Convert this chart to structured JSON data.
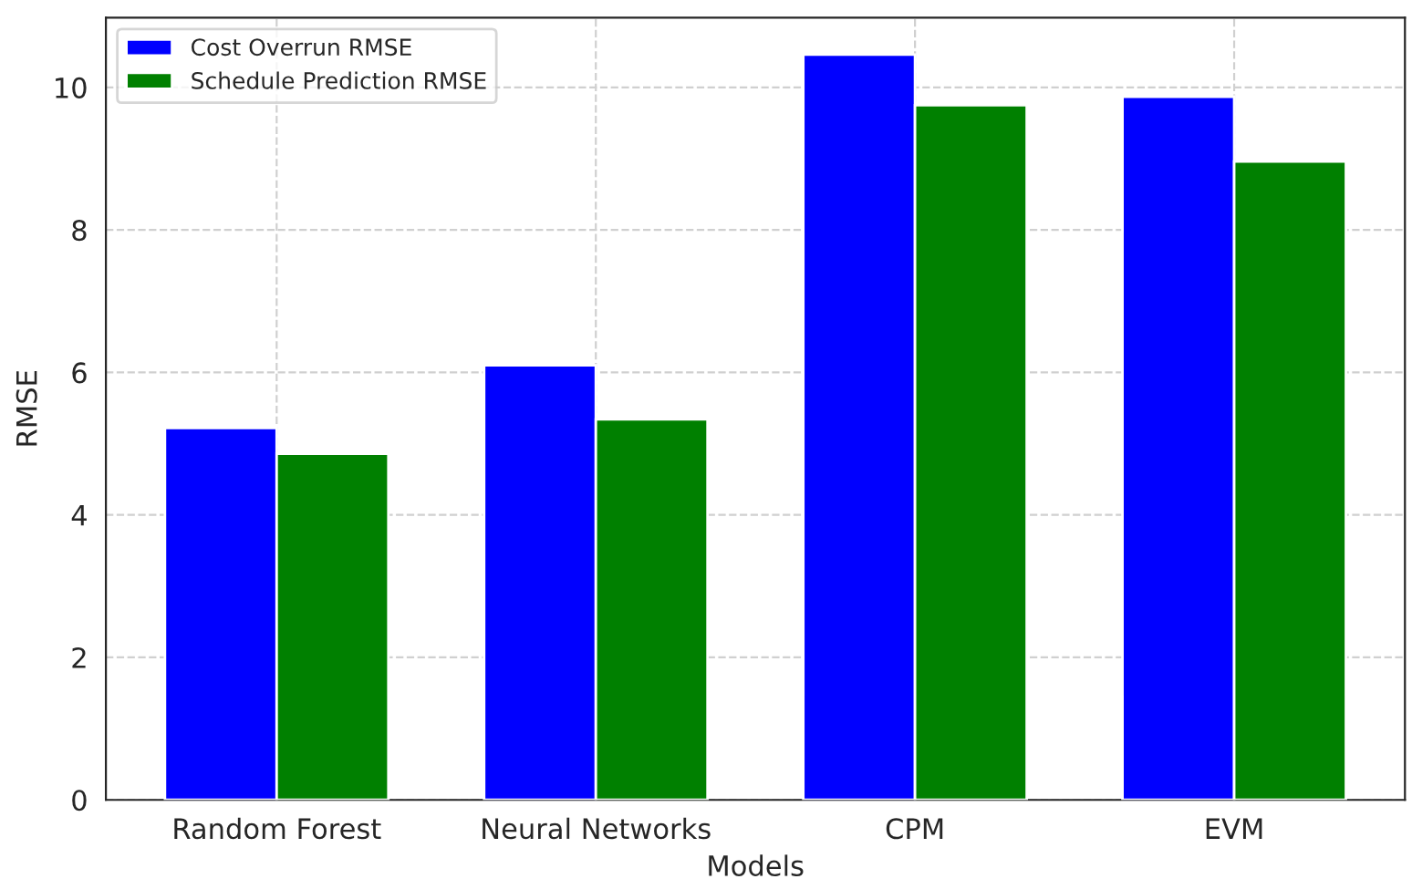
{
  "chart_data": {
    "type": "bar",
    "xlabel": "Models",
    "ylabel": "RMSE",
    "categories": [
      "Random Forest",
      "Neural Networks",
      "CPM",
      "EVM"
    ],
    "series": [
      {
        "name": "Cost Overrun RMSE",
        "color": "#0000ff",
        "values": [
          5.22,
          6.1,
          10.46,
          9.87
        ]
      },
      {
        "name": "Schedule Prediction RMSE",
        "color": "#008000",
        "values": [
          4.86,
          5.34,
          9.75,
          8.96
        ]
      }
    ],
    "ylim": [
      0,
      10.98
    ],
    "yticks": [
      0,
      2,
      4,
      6,
      8,
      10
    ],
    "grid": true,
    "legend": "top left"
  }
}
